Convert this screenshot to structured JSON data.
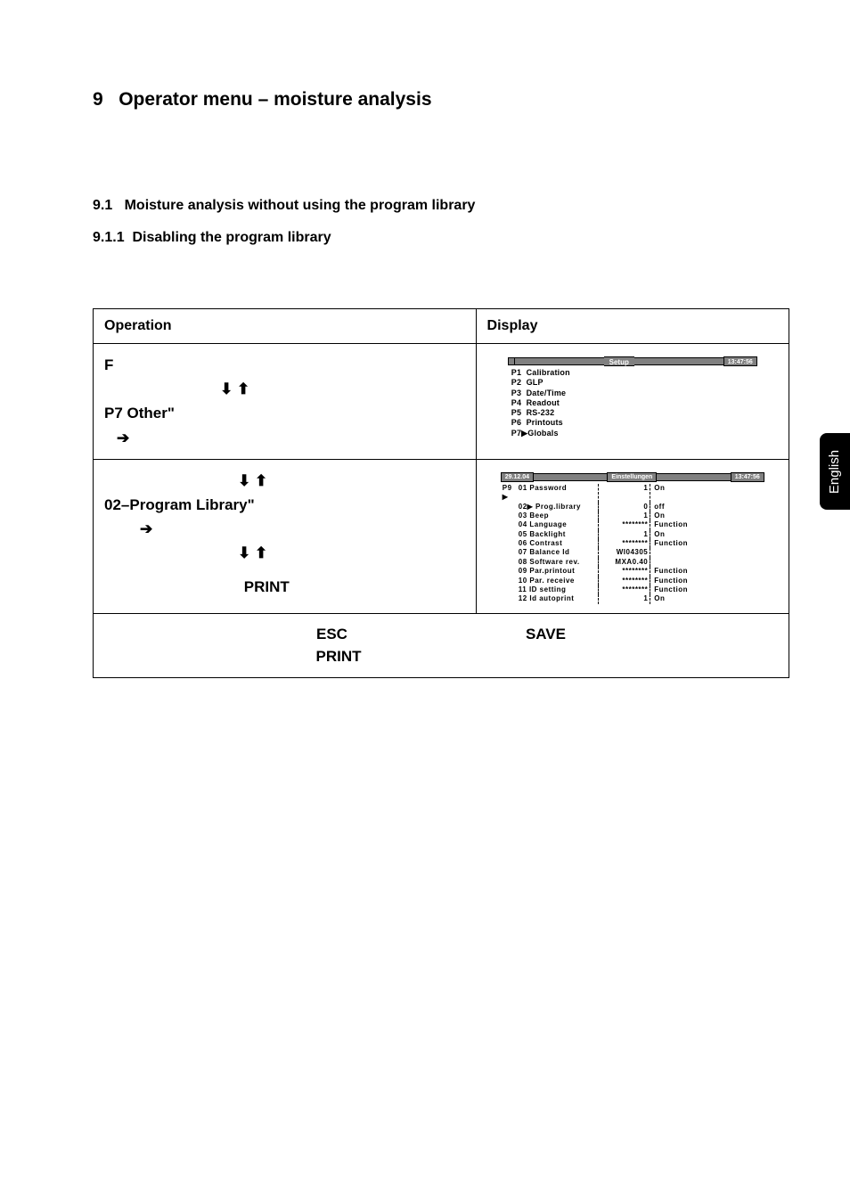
{
  "section": {
    "number": "9",
    "title": "Operator menu – moisture analysis",
    "sub_number": "9.1",
    "sub_title": "Moisture analysis without using the program library",
    "subsub_number": "9.1.1",
    "subsub_title": "Disabling the program library"
  },
  "side_tab": "English",
  "table": {
    "header_op": "Operation",
    "header_disp": "Display",
    "row1": {
      "op_l1": "F",
      "op_arrows1": "⬇ ⬆",
      "op_l2": "P7 Other\"",
      "op_arrow_right": "➔"
    },
    "row2": {
      "op_arrows1": "⬇ ⬆",
      "op_l1": "02–Program Library\"",
      "op_arrow_right": "➔",
      "op_arrows2": "⬇ ⬆",
      "op_l3": "PRINT"
    },
    "row3": {
      "line1_left": "ESC",
      "line1_right": "SAVE",
      "line2": "PRINT"
    }
  },
  "lcd1": {
    "title": "Setup",
    "time": "13:47:56",
    "lines": [
      "P1  Calibration",
      "P2  GLP",
      "P3  Date/Time",
      "P4  Readout",
      "P5  RS-232",
      "P6  Printouts",
      "P7▶Globals"
    ]
  },
  "lcd2": {
    "date": "29.12.04",
    "title": "Einstellungen",
    "time": "13:47:56",
    "rows": [
      {
        "p": "P9 ▶",
        "n": "01",
        "label": "Password",
        "val": "1",
        "r": "On"
      },
      {
        "p": "",
        "n": "02▶",
        "label": "Prog.library",
        "val": "0",
        "r": "off"
      },
      {
        "p": "",
        "n": "03",
        "label": "Beep",
        "val": "1",
        "r": "On"
      },
      {
        "p": "",
        "n": "04",
        "label": "Language",
        "val": "********",
        "r": "Function"
      },
      {
        "p": "",
        "n": "05",
        "label": "Backlight",
        "val": "1",
        "r": "On"
      },
      {
        "p": "",
        "n": "06",
        "label": "Contrast",
        "val": "********",
        "r": "Function"
      },
      {
        "p": "",
        "n": "07",
        "label": "Balance Id",
        "val": "WI04305",
        "r": ""
      },
      {
        "p": "",
        "n": "08",
        "label": "Software rev.",
        "val": "MXA0.40",
        "r": ""
      },
      {
        "p": "",
        "n": "09",
        "label": "Par.printout",
        "val": "********",
        "r": "Function"
      },
      {
        "p": "",
        "n": "10",
        "label": "Par. receive",
        "val": "********",
        "r": "Function"
      },
      {
        "p": "",
        "n": "11",
        "label": "ID setting",
        "val": "********",
        "r": "Function"
      },
      {
        "p": "",
        "n": "12",
        "label": "Id autoprint",
        "val": "1",
        "r": "On"
      }
    ]
  }
}
